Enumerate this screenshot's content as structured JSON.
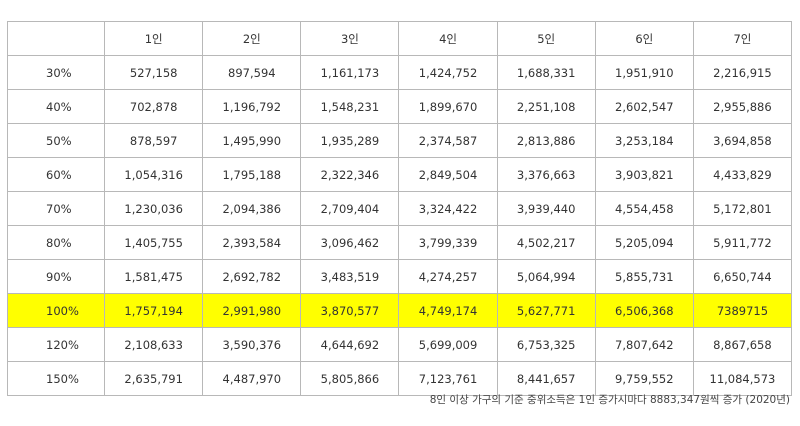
{
  "table": {
    "corner": "",
    "headers": [
      "1인",
      "2인",
      "3인",
      "4인",
      "5인",
      "6인",
      "7인"
    ],
    "rows": [
      {
        "label": "30%",
        "values": [
          "527,158",
          "897,594",
          "1,161,173",
          "1,424,752",
          "1,688,331",
          "1,951,910",
          "2,216,915"
        ],
        "highlight": false
      },
      {
        "label": "40%",
        "values": [
          "702,878",
          "1,196,792",
          "1,548,231",
          "1,899,670",
          "2,251,108",
          "2,602,547",
          "2,955,886"
        ],
        "highlight": false
      },
      {
        "label": "50%",
        "values": [
          "878,597",
          "1,495,990",
          "1,935,289",
          "2,374,587",
          "2,813,886",
          "3,253,184",
          "3,694,858"
        ],
        "highlight": false
      },
      {
        "label": "60%",
        "values": [
          "1,054,316",
          "1,795,188",
          "2,322,346",
          "2,849,504",
          "3,376,663",
          "3,903,821",
          "4,433,829"
        ],
        "highlight": false
      },
      {
        "label": "70%",
        "values": [
          "1,230,036",
          "2,094,386",
          "2,709,404",
          "3,324,422",
          "3,939,440",
          "4,554,458",
          "5,172,801"
        ],
        "highlight": false
      },
      {
        "label": "80%",
        "values": [
          "1,405,755",
          "2,393,584",
          "3,096,462",
          "3,799,339",
          "4,502,217",
          "5,205,094",
          "5,911,772"
        ],
        "highlight": false
      },
      {
        "label": "90%",
        "values": [
          "1,581,475",
          "2,692,782",
          "3,483,519",
          "4,274,257",
          "5,064,994",
          "5,855,731",
          "6,650,744"
        ],
        "highlight": false
      },
      {
        "label": "100%",
        "values": [
          "1,757,194",
          "2,991,980",
          "3,870,577",
          "4,749,174",
          "5,627,771",
          "6,506,368",
          "7389715"
        ],
        "highlight": true
      },
      {
        "label": "120%",
        "values": [
          "2,108,633",
          "3,590,376",
          "4,644,692",
          "5,699,009",
          "6,753,325",
          "7,807,642",
          "8,867,658"
        ],
        "highlight": false
      },
      {
        "label": "150%",
        "values": [
          "2,635,791",
          "4,487,970",
          "5,805,866",
          "7,123,761",
          "8,441,657",
          "9,759,552",
          "11,084,573"
        ],
        "highlight": false
      }
    ],
    "highlight_color": "#ffff00"
  },
  "note": "8인 이상 가구의 기준 중위소득은 1인 증가시마다 8883,347원씩 증가 (2020년)"
}
